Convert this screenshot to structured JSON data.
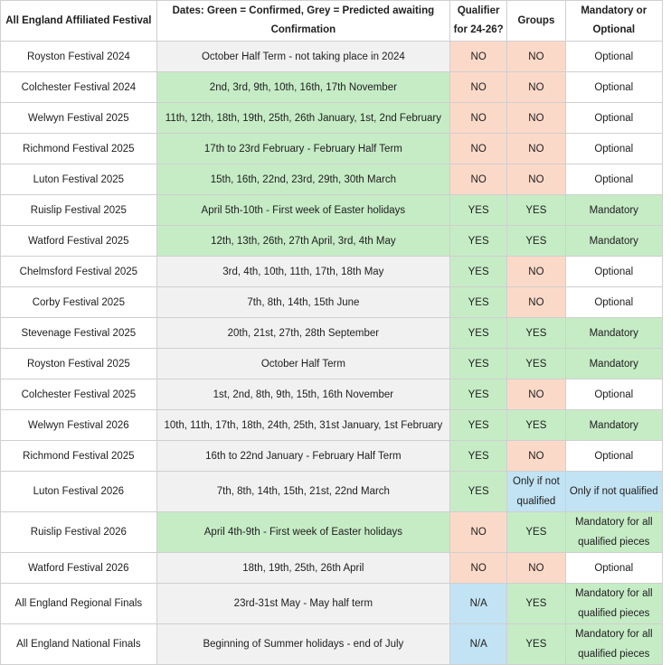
{
  "headers": {
    "festival": "All England Affiliated Festival",
    "dates": "Dates: Green = Confirmed, Grey = Predicted awaiting Confirmation",
    "qualifier": "Qualifier for 24-26?",
    "groups": "Groups",
    "mandatory": "Mandatory or Optional"
  },
  "rows": [
    {
      "festival": "Royston Festival 2024",
      "dates": "October Half Term - not taking place in 2024",
      "dates_status": "grey",
      "qualifier": "NO",
      "qualifier_color": "peach",
      "groups": "NO",
      "groups_color": "peach",
      "mandatory": "Optional",
      "mandatory_color": "white"
    },
    {
      "festival": "Colchester Festival 2024",
      "dates": "2nd, 3rd, 9th, 10th, 16th, 17th November",
      "dates_status": "green",
      "qualifier": "NO",
      "qualifier_color": "peach",
      "groups": "NO",
      "groups_color": "peach",
      "mandatory": "Optional",
      "mandatory_color": "white"
    },
    {
      "festival": "Welwyn Festival 2025",
      "dates": "11th, 12th, 18th, 19th, 25th, 26th January, 1st, 2nd February",
      "dates_status": "green",
      "qualifier": "NO",
      "qualifier_color": "peach",
      "groups": "NO",
      "groups_color": "peach",
      "mandatory": "Optional",
      "mandatory_color": "white"
    },
    {
      "festival": "Richmond Festival 2025",
      "dates": "17th to 23rd February - February Half Term",
      "dates_status": "green",
      "qualifier": "NO",
      "qualifier_color": "peach",
      "groups": "NO",
      "groups_color": "peach",
      "mandatory": "Optional",
      "mandatory_color": "white"
    },
    {
      "festival": "Luton Festival 2025",
      "dates": "15th, 16th, 22nd, 23rd, 29th, 30th March",
      "dates_status": "green",
      "qualifier": "NO",
      "qualifier_color": "peach",
      "groups": "NO",
      "groups_color": "peach",
      "mandatory": "Optional",
      "mandatory_color": "white"
    },
    {
      "festival": "Ruislip Festival 2025",
      "dates": "April 5th-10th - First week of Easter holidays",
      "dates_status": "green",
      "qualifier": "YES",
      "qualifier_color": "green",
      "groups": "YES",
      "groups_color": "green",
      "mandatory": "Mandatory",
      "mandatory_color": "green"
    },
    {
      "festival": "Watford Festival 2025",
      "dates": "12th, 13th, 26th, 27th April, 3rd, 4th May",
      "dates_status": "green",
      "qualifier": "YES",
      "qualifier_color": "green",
      "groups": "YES",
      "groups_color": "green",
      "mandatory": "Mandatory",
      "mandatory_color": "green"
    },
    {
      "festival": "Chelmsford Festival 2025",
      "dates": "3rd, 4th, 10th, 11th, 17th, 18th May",
      "dates_status": "grey",
      "qualifier": "YES",
      "qualifier_color": "green",
      "groups": "NO",
      "groups_color": "peach",
      "mandatory": "Optional",
      "mandatory_color": "white"
    },
    {
      "festival": "Corby Festival 2025",
      "dates": "7th, 8th, 14th, 15th June",
      "dates_status": "grey",
      "qualifier": "YES",
      "qualifier_color": "green",
      "groups": "NO",
      "groups_color": "peach",
      "mandatory": "Optional",
      "mandatory_color": "white"
    },
    {
      "festival": "Stevenage Festival 2025",
      "dates": "20th, 21st, 27th, 28th September",
      "dates_status": "grey",
      "qualifier": "YES",
      "qualifier_color": "green",
      "groups": "YES",
      "groups_color": "green",
      "mandatory": "Mandatory",
      "mandatory_color": "green"
    },
    {
      "festival": "Royston Festival 2025",
      "dates": "October Half Term",
      "dates_status": "grey",
      "qualifier": "YES",
      "qualifier_color": "green",
      "groups": "YES",
      "groups_color": "green",
      "mandatory": "Mandatory",
      "mandatory_color": "green"
    },
    {
      "festival": "Colchester Festival 2025",
      "dates": "1st, 2nd, 8th, 9th, 15th, 16th November",
      "dates_status": "grey",
      "qualifier": "YES",
      "qualifier_color": "green",
      "groups": "NO",
      "groups_color": "peach",
      "mandatory": "Optional",
      "mandatory_color": "white"
    },
    {
      "festival": "Welwyn Festival 2026",
      "dates": "10th, 11th, 17th, 18th, 24th, 25th, 31st January, 1st February",
      "dates_status": "grey",
      "qualifier": "YES",
      "qualifier_color": "green",
      "groups": "YES",
      "groups_color": "green",
      "mandatory": "Mandatory",
      "mandatory_color": "green"
    },
    {
      "festival": "Richmond Festival 2025",
      "dates": "16th to 22nd January - February Half Term",
      "dates_status": "grey",
      "qualifier": "YES",
      "qualifier_color": "green",
      "groups": "NO",
      "groups_color": "peach",
      "mandatory": "Optional",
      "mandatory_color": "white"
    },
    {
      "festival": "Luton Festival 2026",
      "dates": "7th, 8th, 14th, 15th, 21st, 22nd March",
      "dates_status": "grey",
      "qualifier": "YES",
      "qualifier_color": "green",
      "groups": "Only if not qualified",
      "groups_color": "blue",
      "mandatory": "Only if not qualified",
      "mandatory_color": "blue"
    },
    {
      "festival": "Ruislip Festival 2026",
      "dates": "April 4th-9th - First week of Easter holidays",
      "dates_status": "green",
      "qualifier": "NO",
      "qualifier_color": "peach",
      "groups": "YES",
      "groups_color": "green",
      "mandatory": "Mandatory for all qualified pieces",
      "mandatory_color": "green"
    },
    {
      "festival": "Watford Festival 2026",
      "dates": "18th, 19th, 25th, 26th April",
      "dates_status": "grey",
      "qualifier": "NO",
      "qualifier_color": "peach",
      "groups": "NO",
      "groups_color": "peach",
      "mandatory": "Optional",
      "mandatory_color": "white"
    },
    {
      "festival": "All England Regional Finals",
      "dates": "23rd-31st May - May half term",
      "dates_status": "grey",
      "qualifier": "N/A",
      "qualifier_color": "blue",
      "groups": "YES",
      "groups_color": "green",
      "mandatory": "Mandatory for all qualified pieces",
      "mandatory_color": "green"
    },
    {
      "festival": "All England National Finals",
      "dates": "Beginning of Summer holidays - end of July",
      "dates_status": "grey",
      "qualifier": "N/A",
      "qualifier_color": "blue",
      "groups": "YES",
      "groups_color": "green",
      "mandatory": "Mandatory for all qualified pieces",
      "mandatory_color": "green"
    }
  ]
}
